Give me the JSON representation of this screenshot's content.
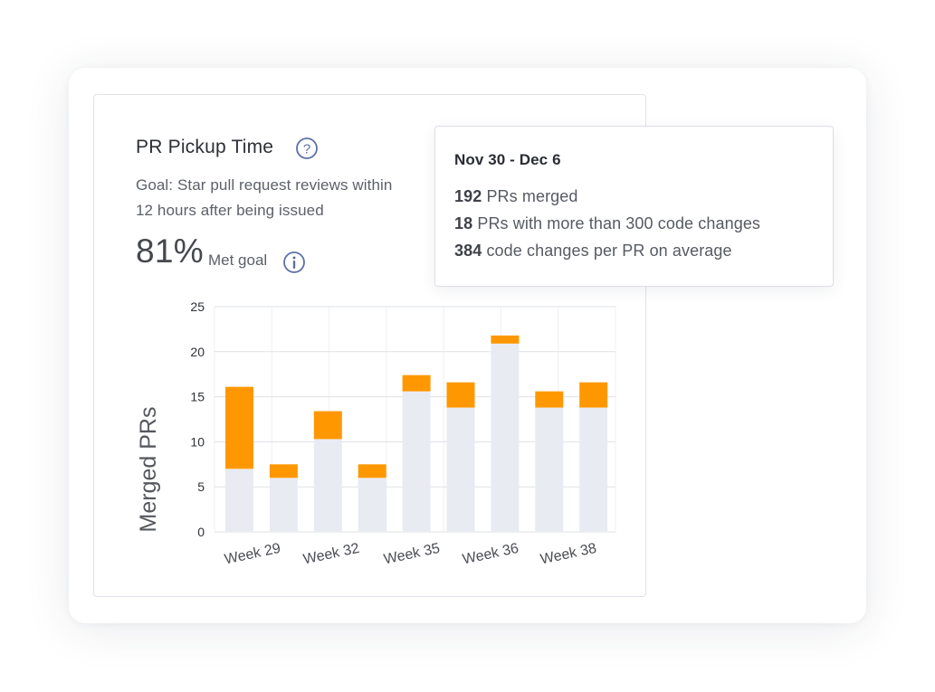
{
  "card": {
    "title": "PR Pickup Time",
    "goal_line1": "Goal: Star pull request reviews within",
    "goal_line2": "12 hours after being issued",
    "percent": "81%",
    "met_goal_label": "Met goal",
    "help_icon": "question-circle-icon",
    "info_icon": "info-circle-icon"
  },
  "tooltip": {
    "date_range": "Nov 30 - Dec 6",
    "rows": [
      {
        "value": "192",
        "text": "PRs merged"
      },
      {
        "value": "18",
        "text": "PRs with more than 300 code changes"
      },
      {
        "value": "384",
        "text": "code changes per PR on average"
      }
    ]
  },
  "colors": {
    "base_bar": "#e9ebf3",
    "top_bar": "#ff9800",
    "icon": "#5d6fa6",
    "grid": "#dfe1e6"
  },
  "chart_data": {
    "type": "bar",
    "stacked": true,
    "ylabel": "Merged PRs",
    "ylim": [
      0,
      25
    ],
    "yticks": [
      0,
      5,
      10,
      15,
      20,
      25
    ],
    "categories": [
      "",
      "",
      "",
      "",
      "",
      "",
      "",
      "",
      ""
    ],
    "tick_labels": [
      "Week 29",
      "Week 32",
      "Week 35",
      "Week 36",
      "Week 38"
    ],
    "series": [
      {
        "values": [
          7,
          6,
          10.3,
          6,
          15.6,
          13.8,
          20.9,
          13.8,
          13.8
        ]
      },
      {
        "values": [
          9.1,
          1.5,
          3.1,
          1.5,
          1.8,
          2.8,
          0.9,
          1.8,
          2.8
        ]
      }
    ],
    "grid": true
  }
}
